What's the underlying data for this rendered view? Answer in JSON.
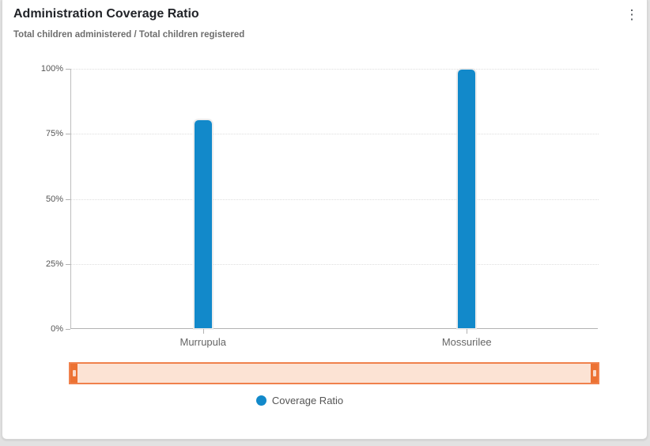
{
  "card": {
    "title": "Administration Coverage Ratio",
    "subtitle": "Total children administered / Total children registered",
    "menu_icon": "kebab-menu-icon",
    "menu_glyph": "⋮"
  },
  "colors": {
    "bar": "#1289ca",
    "axis": "#b3b3b3",
    "gridline": "#dedede",
    "scrollbar_track": "#fce3d4",
    "scrollbar_border": "#f0814c",
    "scrollbar_handle": "#ec7233"
  },
  "chart_data": {
    "type": "bar",
    "title": "Administration Coverage Ratio",
    "subtitle": "Total children administered / Total children registered",
    "categories": [
      "Murrupula",
      "Mossurilee"
    ],
    "series": [
      {
        "name": "Coverage Ratio",
        "values": [
          80,
          99.5
        ],
        "color": "#1289ca"
      }
    ],
    "value_unit": "%",
    "xlabel": "",
    "ylabel": "",
    "ylim": [
      0,
      100
    ],
    "yticks": [
      "0%",
      "25%",
      "50%",
      "75%",
      "100%"
    ],
    "grid": true,
    "gridline_style": "dotted",
    "legend_position": "bottom",
    "has_range_scrollbar": true
  },
  "legend": {
    "label": "Coverage Ratio"
  }
}
